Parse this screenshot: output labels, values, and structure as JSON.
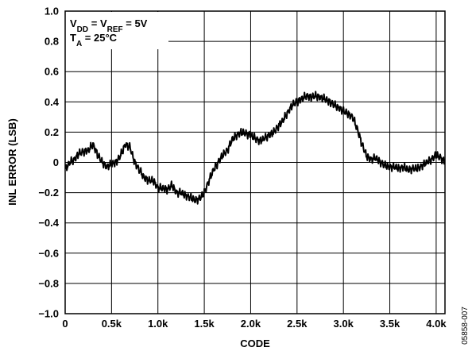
{
  "chart_data": {
    "type": "line",
    "title": "",
    "xlabel": "CODE",
    "ylabel": "INL ERROR (LSB)",
    "xlim": [
      0,
      4095
    ],
    "ylim": [
      -1.0,
      1.0
    ],
    "x_ticks": [
      0,
      500,
      1000,
      1500,
      2000,
      2500,
      3000,
      3500,
      4000
    ],
    "x_tick_labels": [
      "0",
      "0.5k",
      "1.0k",
      "1.5k",
      "2.0k",
      "2.5k",
      "3.0k",
      "3.5k",
      "4.0k"
    ],
    "y_ticks": [
      1.0,
      0.8,
      0.6,
      0.4,
      0.2,
      0,
      -0.2,
      -0.4,
      -0.6,
      -0.8,
      -1.0
    ],
    "y_tick_labels": [
      "1.0",
      "0.8",
      "0.6",
      "0.4",
      "0.2",
      "0",
      "−0.2",
      "−0.4",
      "−0.6",
      "−0.8",
      "−1.0"
    ],
    "grid": true,
    "annotations": {
      "line1": {
        "v": "V",
        "sub1": "DD",
        "mid": " = V",
        "sub2": "REF",
        "end": " = 5V"
      },
      "line2": {
        "t": "T",
        "sub": "A",
        "end": " = 25°C"
      }
    },
    "figure_id": "05858-007",
    "series": [
      {
        "x": [
          0,
          50,
          100,
          150,
          200,
          250,
          300,
          350,
          400,
          450,
          500,
          550,
          600,
          650,
          700,
          750,
          800,
          850,
          900,
          950,
          1000,
          1050,
          1100,
          1150,
          1200,
          1250,
          1300,
          1350,
          1400,
          1450,
          1500,
          1550,
          1600,
          1650,
          1700,
          1750,
          1800,
          1850,
          1900,
          1950,
          2000,
          2050,
          2100,
          2150,
          2200,
          2250,
          2300,
          2350,
          2400,
          2450,
          2500,
          2550,
          2600,
          2650,
          2700,
          2750,
          2800,
          2850,
          2900,
          2950,
          3000,
          3050,
          3100,
          3150,
          3200,
          3250,
          3300,
          3350,
          3400,
          3450,
          3500,
          3550,
          3600,
          3650,
          3700,
          3750,
          3800,
          3850,
          3900,
          3950,
          4000,
          4050,
          4095
        ],
        "y": [
          -0.05,
          0.0,
          0.02,
          0.06,
          0.07,
          0.08,
          0.12,
          0.05,
          0.0,
          -0.03,
          -0.01,
          0.0,
          0.05,
          0.12,
          0.1,
          0.0,
          -0.05,
          -0.1,
          -0.12,
          -0.12,
          -0.17,
          -0.17,
          -0.18,
          -0.15,
          -0.2,
          -0.2,
          -0.22,
          -0.23,
          -0.25,
          -0.24,
          -0.2,
          -0.12,
          -0.05,
          0.0,
          0.05,
          0.08,
          0.15,
          0.18,
          0.2,
          0.19,
          0.18,
          0.16,
          0.14,
          0.16,
          0.18,
          0.2,
          0.24,
          0.28,
          0.33,
          0.38,
          0.4,
          0.42,
          0.44,
          0.43,
          0.44,
          0.43,
          0.42,
          0.4,
          0.38,
          0.36,
          0.34,
          0.32,
          0.3,
          0.22,
          0.12,
          0.04,
          0.02,
          0.03,
          0.0,
          -0.02,
          -0.03,
          -0.03,
          -0.04,
          -0.03,
          -0.05,
          -0.04,
          -0.04,
          -0.02,
          0.0,
          0.02,
          0.05,
          0.03,
          0.0
        ]
      }
    ]
  }
}
